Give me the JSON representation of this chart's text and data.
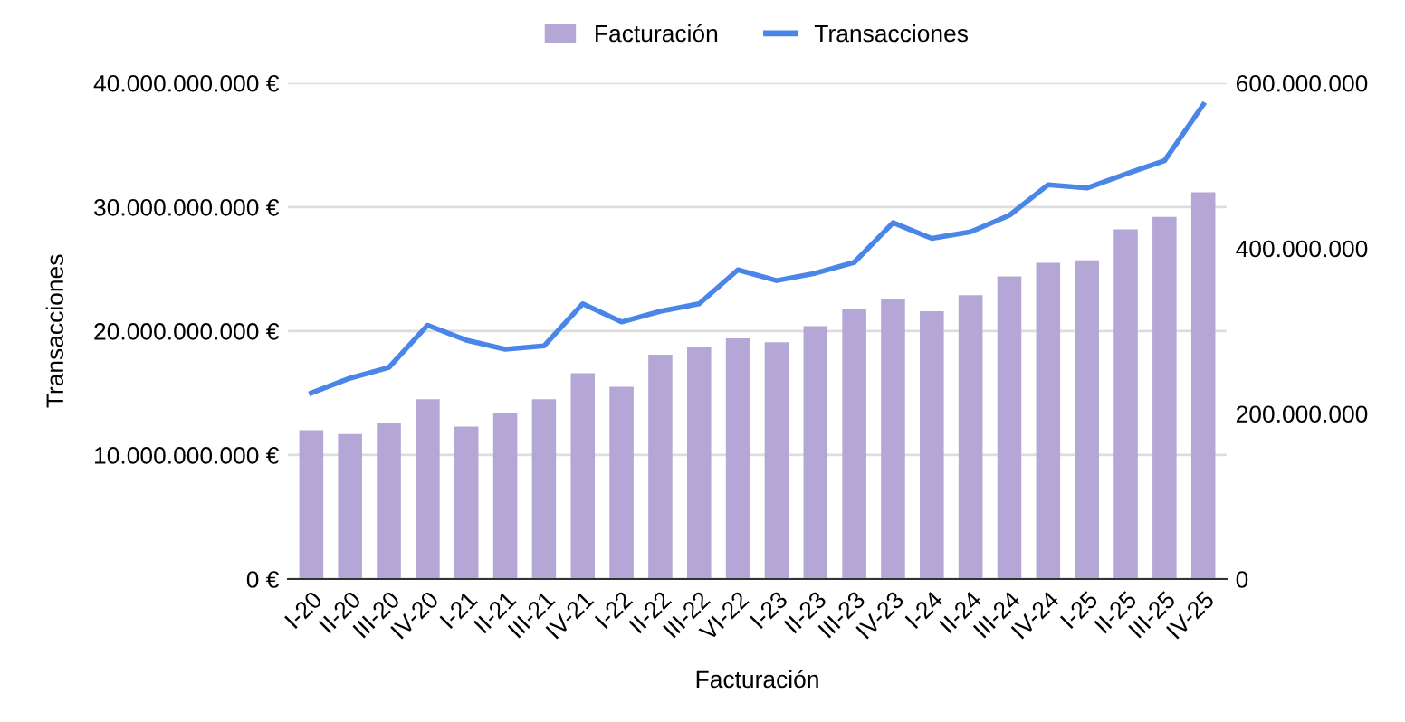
{
  "chart_data": {
    "type": "bar",
    "xlabel": "Facturación",
    "ylabel": "Transacciones",
    "categories": [
      "I-20",
      "II-20",
      "III-20",
      "IV-20",
      "I-21",
      "II-21",
      "III-21",
      "IV-21",
      "I-22",
      "II-22",
      "III-22",
      "VI-22",
      "I-23",
      "II-23",
      "III-23",
      "IV-23",
      "I-24",
      "II-24",
      "III-24",
      "IV-24",
      "I-25",
      "II-25",
      "III-25",
      "IV-25"
    ],
    "series": [
      {
        "name": "Facturación",
        "color": "#b4a7d6",
        "values": [
          12000000000,
          11700000000,
          12600000000,
          14500000000,
          12300000000,
          13400000000,
          14500000000,
          16600000000,
          15500000000,
          18100000000,
          18700000000,
          19400000000,
          19100000000,
          20400000000,
          21800000000,
          22600000000,
          21600000000,
          22900000000,
          24400000000,
          25500000000,
          25700000000,
          28200000000,
          29200000000,
          31200000000
        ]
      },
      {
        "name": "Transacciones",
        "type": "line",
        "axis": "y2",
        "color": "#4a86e8",
        "values": [
          225000000,
          243000000,
          256000000,
          307000000,
          289000000,
          278000000,
          282000000,
          333000000,
          311000000,
          324000000,
          333000000,
          374000000,
          361000000,
          370000000,
          383000000,
          431000000,
          412000000,
          420000000,
          440000000,
          477000000,
          473000000,
          490000000,
          506000000,
          574000000
        ]
      }
    ],
    "ylim": [
      0,
      40000000000
    ],
    "yticks": [
      {
        "value": 0,
        "label": "0 €"
      },
      {
        "value": 10000000000,
        "label": "10.000.000.000 €"
      },
      {
        "value": 20000000000,
        "label": "20.000.000.000 €"
      },
      {
        "value": 30000000000,
        "label": "30.000.000.000 €"
      },
      {
        "value": 40000000000,
        "label": "40.000.000.000 €"
      }
    ],
    "y2lim": [
      0,
      600000000
    ],
    "y2ticks": [
      {
        "value": 0,
        "label": "0"
      },
      {
        "value": 200000000,
        "label": "200.000.000"
      },
      {
        "value": 400000000,
        "label": "400.000.000"
      },
      {
        "value": 600000000,
        "label": "600.000.000"
      }
    ],
    "grid": "y",
    "legend": "top",
    "marker": "none",
    "line_style": "solid"
  }
}
